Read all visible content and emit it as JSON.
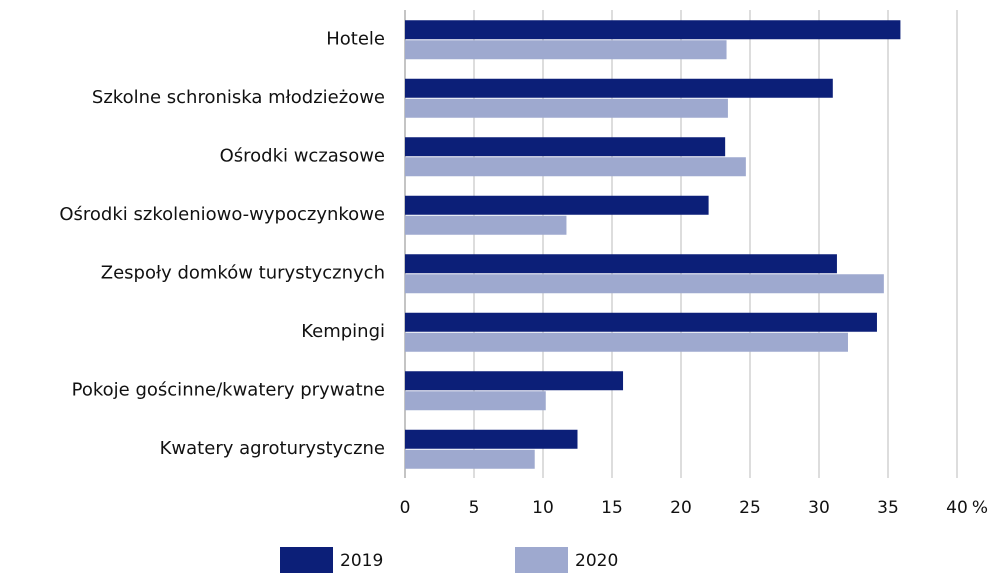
{
  "chart_data": {
    "type": "bar",
    "orientation": "horizontal",
    "categories": [
      "Hotele",
      "Szkolne schroniska młodzieżowe",
      "Ośrodki wczasowe",
      "Ośrodki szkoleniowo-wypoczynkowe",
      "Zespoły domków turystycznych",
      "Kempingi",
      "Pokoje gościnne/kwatery prywatne",
      "Kwatery agroturystyczne"
    ],
    "series": [
      {
        "name": "2019",
        "color": "#0c1f78",
        "values": [
          35.9,
          31.0,
          23.2,
          22.0,
          31.3,
          34.2,
          15.8,
          12.5
        ]
      },
      {
        "name": "2020",
        "color": "#9ea9cf",
        "values": [
          23.3,
          23.4,
          24.7,
          11.7,
          34.7,
          32.1,
          10.2,
          9.4
        ]
      }
    ],
    "xlim": [
      0,
      40
    ],
    "xticks": [
      0,
      5,
      10,
      15,
      20,
      25,
      30,
      35,
      40
    ],
    "x_unit": "%",
    "grid": true,
    "legend": "bottom"
  }
}
